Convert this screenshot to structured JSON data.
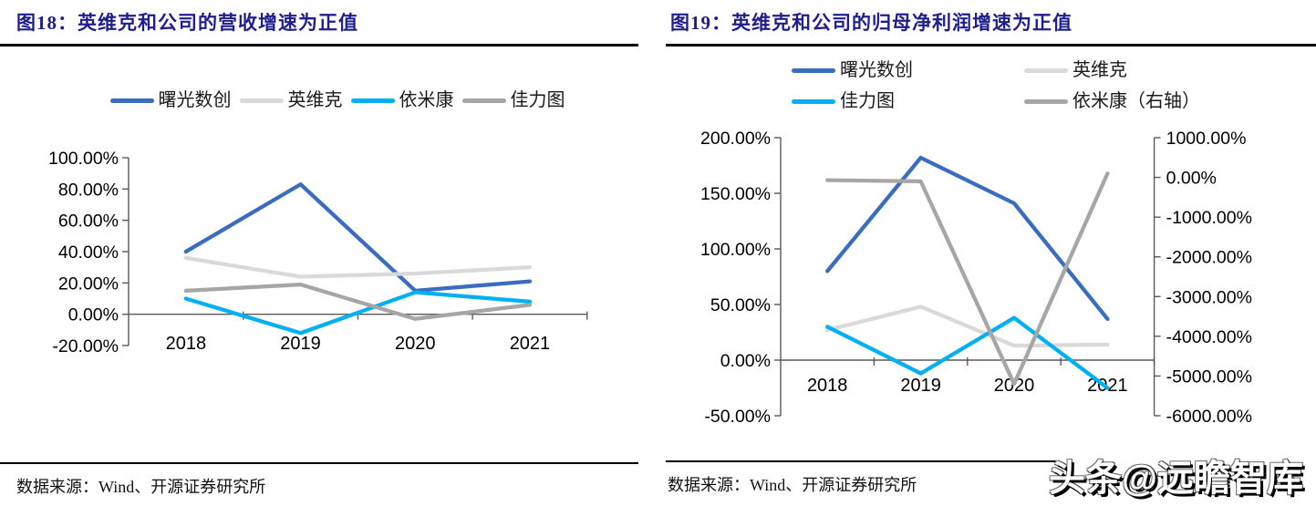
{
  "watermark": "头条@远瞻智库",
  "chart_data": [
    {
      "id": "fig18",
      "type": "line",
      "title": "图18：英维克和公司的营收增速为正值",
      "source": "数据来源：Wind、开源证券研究所",
      "categories": [
        "2018",
        "2019",
        "2020",
        "2021"
      ],
      "left_axis": {
        "min": -20,
        "max": 100,
        "step": 20,
        "labels": [
          "100.00%",
          "80.00%",
          "60.00%",
          "40.00%",
          "20.00%",
          "0.00%",
          "-20.00%"
        ]
      },
      "series": [
        {
          "key": "shuguang-shuchuang",
          "name": "曙光数创",
          "color": "#3A6CC0",
          "axis": "left",
          "values": [
            40,
            83,
            15,
            21
          ]
        },
        {
          "key": "yingweike",
          "name": "英维克",
          "color": "#D9D9D9",
          "axis": "left",
          "values": [
            36,
            24,
            26,
            30
          ]
        },
        {
          "key": "yimikang",
          "name": "依米康",
          "color": "#00B0F0",
          "axis": "left",
          "values": [
            10,
            -12,
            14,
            8
          ]
        },
        {
          "key": "jialitu",
          "name": "佳力图",
          "color": "#A6A6A6",
          "axis": "left",
          "values": [
            15,
            19,
            -3,
            6
          ]
        }
      ],
      "legend_position": "top",
      "grid": "off"
    },
    {
      "id": "fig19",
      "type": "line",
      "title": "图19：英维克和公司的归母净利润增速为正值",
      "source": "数据来源：Wind、开源证券研究所",
      "categories": [
        "2018",
        "2019",
        "2020",
        "2021"
      ],
      "left_axis": {
        "min": -50,
        "max": 200,
        "step": 50,
        "labels": [
          "200.00%",
          "150.00%",
          "100.00%",
          "50.00%",
          "0.00%",
          "-50.00%"
        ]
      },
      "right_axis": {
        "min": -6000,
        "max": 1000,
        "step": 1000,
        "labels": [
          "1000.00%",
          "0.00%",
          "-1000.00%",
          "-2000.00%",
          "-3000.00%",
          "-4000.00%",
          "-5000.00%",
          "-6000.00%"
        ]
      },
      "series": [
        {
          "key": "shuguang-shuchuang",
          "name": "曙光数创",
          "color": "#3A6CC0",
          "axis": "left",
          "values": [
            80,
            182,
            141,
            37
          ]
        },
        {
          "key": "yingweike",
          "name": "英维克",
          "color": "#D9D9D9",
          "axis": "left",
          "values": [
            27,
            48,
            13,
            14
          ]
        },
        {
          "key": "jialitu",
          "name": "佳力图",
          "color": "#00B0F0",
          "axis": "left",
          "values": [
            30,
            -12,
            38,
            -25
          ]
        },
        {
          "key": "yimikang-right",
          "name": "依米康（右轴）",
          "color": "#A6A6A6",
          "axis": "right",
          "values": [
            -70,
            -100,
            -5200,
            100
          ]
        }
      ],
      "legend_position": "top",
      "grid": "off"
    }
  ]
}
